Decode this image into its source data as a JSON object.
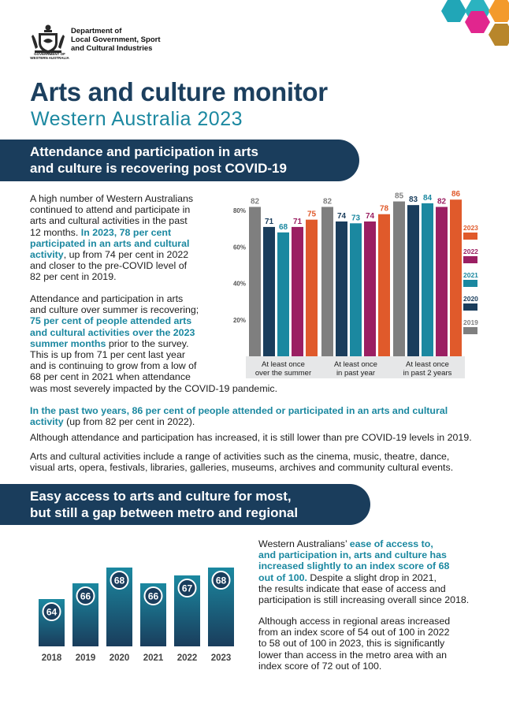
{
  "header": {
    "dept_lines": [
      "Department of",
      "Local Government, Sport",
      "and Cultural Industries"
    ],
    "crest_text": "GOVERNMENT OF WESTERN AUSTRALIA",
    "title": "Arts and culture monitor",
    "subtitle": "Western Australia 2023"
  },
  "colors": {
    "navy": "#1a3d5c",
    "teal": "#1b88a0",
    "grey": "#7f7f7f",
    "purple": "#9b1f62",
    "orange": "#e05a2b",
    "hex_teal": "#21a6b7",
    "hex_magenta": "#e1268e",
    "hex_orange": "#f39a2c",
    "hex_brown": "#b8862b"
  },
  "section1": {
    "banner_lines": [
      "Attendance and participation in arts",
      "and culture is recovering post COVID-19"
    ],
    "p1": [
      [
        {
          "t": "A high number of Western Australians"
        }
      ],
      [
        {
          "t": "continued to attend and participate in"
        }
      ],
      [
        {
          "t": "arts and cultural activities in the past"
        }
      ],
      [
        {
          "t": "12 months. "
        },
        {
          "t": "In 2023, 78 per cent",
          "h": true
        }
      ],
      [
        {
          "t": "participated in an arts and cultural",
          "h": true
        }
      ],
      [
        {
          "t": "activity",
          "h": true
        },
        {
          "t": ", up from 74 per cent in 2022"
        }
      ],
      [
        {
          "t": "and closer to the pre-COVID level of"
        }
      ],
      [
        {
          "t": "82 per cent in 2019."
        }
      ]
    ],
    "p2": [
      [
        {
          "t": "Attendance and participation in arts"
        }
      ],
      [
        {
          "t": "and culture over summer is recovering;"
        }
      ],
      [
        {
          "t": "75 per cent of people attended arts",
          "h": true
        }
      ],
      [
        {
          "t": "and cultural activities over the 2023",
          "h": true
        }
      ],
      [
        {
          "t": "summer months",
          "h": true
        },
        {
          "t": " prior to the survey."
        }
      ],
      [
        {
          "t": "This is up from 71 per cent last year"
        }
      ],
      [
        {
          "t": "and is continuing to grow from a low of"
        }
      ],
      [
        {
          "t": "68 per cent in 2021 when attendance"
        }
      ],
      [
        {
          "t": "was most severely impacted by the COVID-19 pandemic."
        }
      ]
    ],
    "p3": [
      [
        {
          "t": "In the past two years, 86 per cent of people attended or participated in an arts and cultural",
          "h": true
        }
      ],
      [
        {
          "t": "activity",
          "h": true
        },
        {
          "t": " (up from 82 per cent in 2022)."
        }
      ]
    ],
    "p4": [
      [
        {
          "t": "Although attendance and participation has increased, it is still lower than pre COVID-19 levels in 2019."
        }
      ]
    ],
    "p5": [
      [
        {
          "t": "Arts and cultural activities include a range of activities such as  the cinema, music, theatre, dance,"
        }
      ],
      [
        {
          "t": "visual arts, opera, festivals, libraries, galleries, museums, archives and community cultural events."
        }
      ]
    ]
  },
  "section2": {
    "banner_lines": [
      "Easy access to arts and culture for most,",
      "but still a gap between metro and regional"
    ],
    "p1": [
      [
        {
          "t": "Western Australians’ "
        },
        {
          "t": "ease of access to,",
          "h": true
        }
      ],
      [
        {
          "t": "and participation in, arts and culture has",
          "h": true
        }
      ],
      [
        {
          "t": "increased slightly to an index score of 68",
          "h": true
        }
      ],
      [
        {
          "t": "out of 100.",
          "h": true
        },
        {
          "t": " Despite a slight drop in 2021,"
        }
      ],
      [
        {
          "t": "the results indicate that ease of access and"
        }
      ],
      [
        {
          "t": "participation is still increasing overall since 2018."
        }
      ]
    ],
    "p2": [
      [
        {
          "t": "Although access in regional areas increased"
        }
      ],
      [
        {
          "t": "from an index score of 54 out of 100 in 2022"
        }
      ],
      [
        {
          "t": "to 58 out of 100 in 2023, this is significantly"
        }
      ],
      [
        {
          "t": "lower than access in the metro area with an"
        }
      ],
      [
        {
          "t": "index score of 72 out of 100."
        }
      ]
    ]
  },
  "chart_data": [
    {
      "type": "bar",
      "categories": [
        [
          "At least once",
          "over the summer"
        ],
        [
          "At least once",
          "in past year"
        ],
        [
          "At least once",
          "in past 2 years"
        ]
      ],
      "series": [
        {
          "name": "2019",
          "color": "#7f7f7f",
          "values": [
            82,
            82,
            85
          ]
        },
        {
          "name": "2020",
          "color": "#1a3d5c",
          "values": [
            71,
            74,
            83
          ]
        },
        {
          "name": "2021",
          "color": "#1b88a0",
          "values": [
            68,
            73,
            84
          ]
        },
        {
          "name": "2022",
          "color": "#9b1f62",
          "values": [
            71,
            74,
            82
          ]
        },
        {
          "name": "2023",
          "color": "#e05a2b",
          "values": [
            75,
            78,
            86
          ]
        }
      ],
      "yticks": [
        "20%",
        "40%",
        "60%",
        "80%"
      ],
      "ytick_values": [
        20,
        40,
        60,
        80
      ],
      "ylim": [
        0,
        90
      ],
      "legend_order": [
        "2023",
        "2022",
        "2021",
        "2020",
        "2019"
      ],
      "legend_position": "right",
      "grid": false
    },
    {
      "type": "bar",
      "categories": [
        "2018",
        "2019",
        "2020",
        "2021",
        "2022",
        "2023"
      ],
      "values": [
        64,
        66,
        68,
        66,
        67,
        68
      ],
      "value_labels": [
        "64",
        "66",
        "68",
        "66",
        "67",
        "68"
      ],
      "color": "#1a6f8c"
    }
  ]
}
